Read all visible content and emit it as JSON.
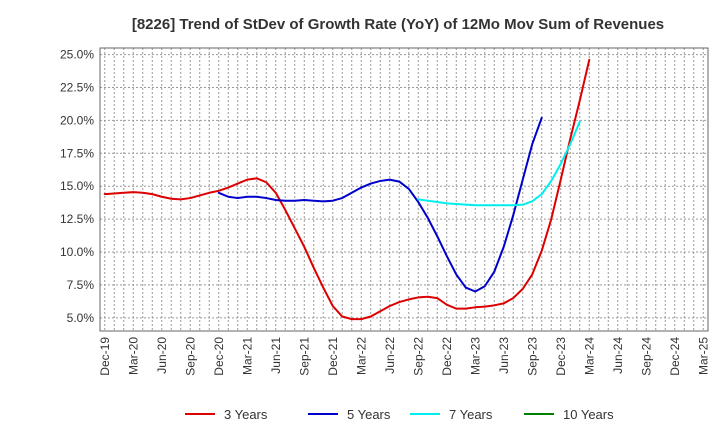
{
  "chart_data": {
    "type": "line",
    "title": "[8226]  Trend of StDev of Growth Rate (YoY) of 12Mo Mov Sum of Revenues",
    "xlabel": "",
    "ylabel": "",
    "ylim": [
      4.0,
      25.5
    ],
    "y_ticks": [
      5.0,
      7.5,
      10.0,
      12.5,
      15.0,
      17.5,
      20.0,
      22.5,
      25.0
    ],
    "y_tick_labels": [
      "5.0%",
      "7.5%",
      "10.0%",
      "12.5%",
      "15.0%",
      "17.5%",
      "20.0%",
      "22.5%",
      "25.0%"
    ],
    "x_tick_labels": [
      "Dec-19",
      "Mar-20",
      "Jun-20",
      "Sep-20",
      "Dec-20",
      "Mar-21",
      "Jun-21",
      "Sep-21",
      "Dec-21",
      "Mar-22",
      "Jun-22",
      "Sep-22",
      "Dec-22",
      "Mar-23",
      "Jun-23",
      "Sep-23",
      "Dec-23",
      "Mar-24",
      "Jun-24",
      "Sep-24",
      "Dec-24",
      "Mar-25"
    ],
    "grid": true,
    "legend_position": "bottom",
    "series": [
      {
        "name": "3 Years",
        "color": "#dd0000",
        "start_index": 0,
        "values": [
          14.4,
          14.45,
          14.5,
          14.55,
          14.5,
          14.4,
          14.2,
          14.05,
          14.0,
          14.1,
          14.3,
          14.5,
          14.65,
          14.9,
          15.2,
          15.5,
          15.6,
          15.3,
          14.5,
          13.2,
          11.8,
          10.4,
          8.8,
          7.3,
          5.9,
          5.1,
          4.9,
          4.9,
          5.1,
          5.5,
          5.9,
          6.2,
          6.4,
          6.55,
          6.6,
          6.5,
          6.0,
          5.7,
          5.7,
          5.8,
          5.85,
          5.95,
          6.1,
          6.5,
          7.2,
          8.3,
          10.1,
          12.5,
          15.5,
          18.6,
          21.5,
          24.6
        ]
      },
      {
        "name": "5 Years",
        "color": "#0000cc",
        "start_index": 12,
        "values": [
          14.5,
          14.2,
          14.1,
          14.2,
          14.2,
          14.1,
          13.95,
          13.9,
          13.9,
          13.95,
          13.9,
          13.85,
          13.9,
          14.1,
          14.5,
          14.9,
          15.2,
          15.4,
          15.5,
          15.35,
          14.8,
          13.8,
          12.6,
          11.2,
          9.7,
          8.3,
          7.3,
          7.0,
          7.4,
          8.5,
          10.4,
          12.8,
          15.5,
          18.2,
          20.2
        ]
      },
      {
        "name": "7 Years",
        "color": "#00eeee",
        "start_index": 33,
        "values": [
          14.0,
          13.9,
          13.8,
          13.7,
          13.65,
          13.6,
          13.55,
          13.55,
          13.55,
          13.55,
          13.55,
          13.6,
          13.85,
          14.4,
          15.4,
          16.7,
          18.2,
          19.9
        ]
      },
      {
        "name": "10 Years",
        "color": "#008000",
        "start_index": 0,
        "values": []
      }
    ]
  }
}
